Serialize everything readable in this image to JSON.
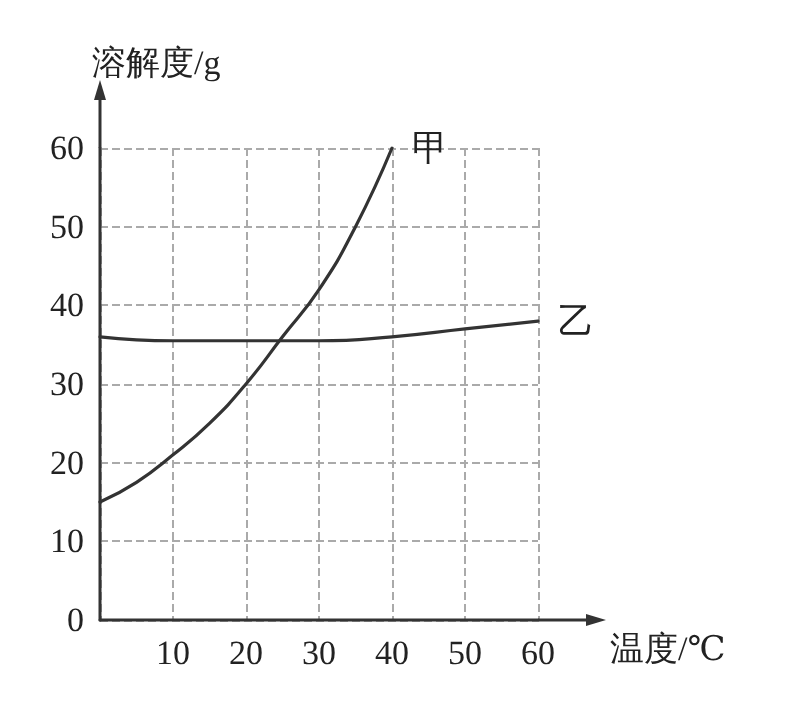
{
  "chart_data": {
    "type": "line",
    "xlabel": "温度/℃",
    "ylabel": "溶解度/g",
    "series": [
      {
        "name": "甲",
        "color": "#333333",
        "x": [
          0,
          5,
          10,
          15,
          20,
          25,
          30,
          35,
          40
        ],
        "values": [
          15,
          17.5,
          21,
          25,
          30,
          36,
          42,
          50,
          60
        ]
      },
      {
        "name": "乙",
        "color": "#333333",
        "x": [
          0,
          10,
          20,
          30,
          40,
          50,
          60
        ],
        "values": [
          36,
          35.5,
          35.5,
          35.5,
          36,
          37,
          38
        ]
      }
    ],
    "xlim": [
      0,
      60
    ],
    "xticks": [
      {
        "value": 0,
        "label": null
      },
      10,
      20,
      30,
      40,
      50,
      60
    ],
    "ylim": [
      0,
      60
    ],
    "yticks": [
      0,
      10,
      20,
      30,
      40,
      50,
      60
    ],
    "grid": true,
    "legend": false,
    "marker": "none",
    "line_style": "solid"
  }
}
